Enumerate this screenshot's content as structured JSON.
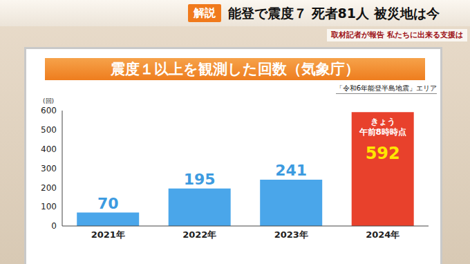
{
  "header": {
    "tag": "解説",
    "headline": "能登で震度７ 死者81人 被災地は今",
    "subheadline": "取材記者が報告 私たちに出来る支援は"
  },
  "chart_data": {
    "type": "bar",
    "title": "震度１以上を観測した回数（気象庁）",
    "subtitle": "「令和6年能登半島地震」エリア",
    "y_label": "(回)",
    "categories": [
      "2021年",
      "2022年",
      "2023年",
      "2024年"
    ],
    "values": [
      70,
      195,
      241,
      592
    ],
    "colors": [
      "#4aa6ea",
      "#4aa6ea",
      "#4aa6ea",
      "#e8412c"
    ],
    "ylim": [
      0,
      600
    ],
    "yticks": [
      0,
      100,
      200,
      300,
      400,
      500,
      600
    ],
    "grid": false,
    "data_labels": true,
    "annotations": [
      {
        "category": "2024年",
        "text_lines": [
          "きょう",
          "午前8時時点"
        ]
      }
    ]
  }
}
